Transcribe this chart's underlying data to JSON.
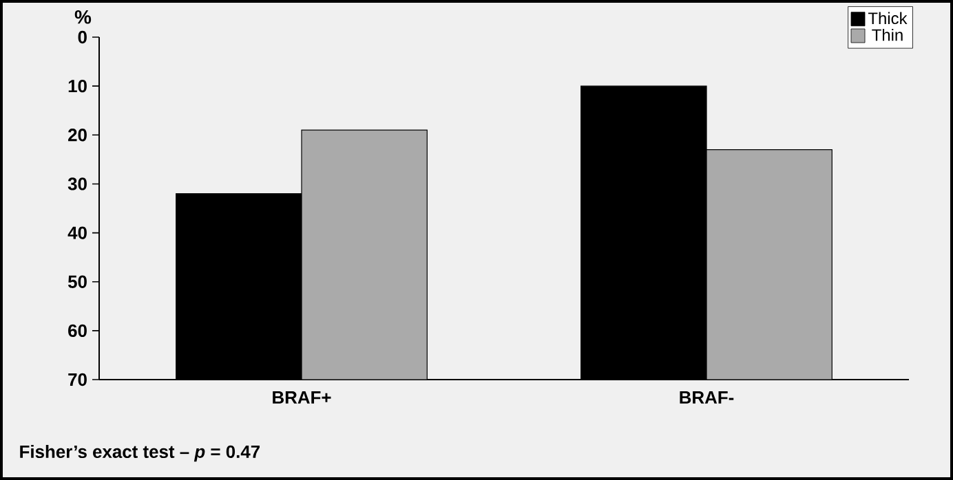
{
  "chart_data": {
    "type": "bar",
    "ylabel": "%",
    "categories": [
      "BRAF+",
      "BRAF-"
    ],
    "series": [
      {
        "name": "Thick",
        "color": "#000000",
        "base": [
          70,
          70
        ],
        "values": [
          -38,
          -60
        ]
      },
      {
        "name": "Thin",
        "color": "#aaaaaa",
        "base": [
          70,
          70
        ],
        "values": [
          -51,
          -47
        ]
      }
    ],
    "ylim": [
      70,
      0
    ],
    "yticks": [
      0,
      10,
      20,
      30,
      40,
      50,
      60,
      70
    ],
    "legend": "top right",
    "annotations": [
      "Fisher’s exact test – *p* = 0.47"
    ]
  }
}
